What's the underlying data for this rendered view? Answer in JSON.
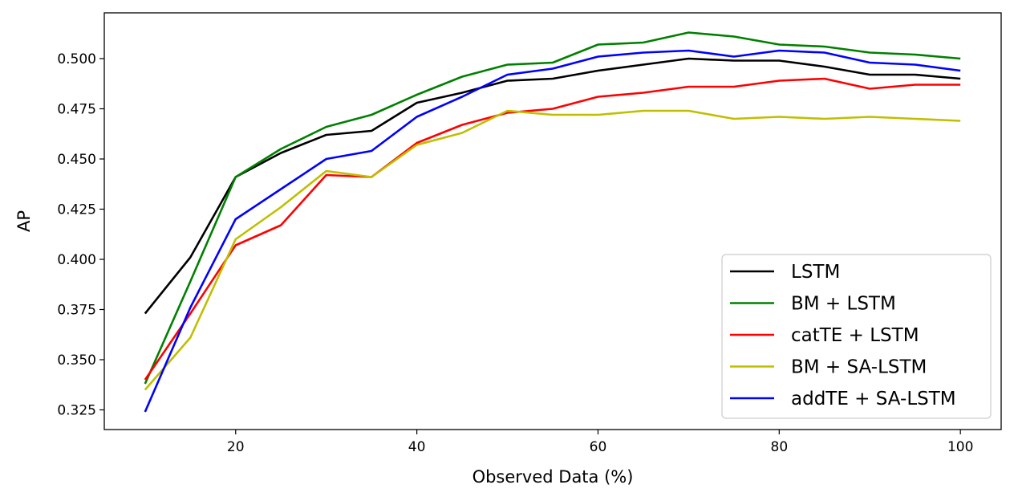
{
  "chart_data": {
    "type": "line",
    "xlabel": "Observed Data (%)",
    "ylabel": "AP",
    "xlim": [
      5.5,
      104.5
    ],
    "ylim": [
      0.3152,
      0.5228
    ],
    "xticks": [
      "20",
      "40",
      "60",
      "80",
      "100"
    ],
    "yticks": [
      "0.325",
      "0.350",
      "0.375",
      "0.400",
      "0.425",
      "0.450",
      "0.475",
      "0.500"
    ],
    "grid": false,
    "legend_position": "lower-right",
    "x": [
      10,
      15,
      20,
      25,
      30,
      35,
      40,
      45,
      50,
      55,
      60,
      65,
      70,
      75,
      80,
      85,
      90,
      95,
      100
    ],
    "series": [
      {
        "name": "LSTM",
        "color": "#000000",
        "values": [
          0.373,
          0.401,
          0.441,
          0.453,
          0.462,
          0.464,
          0.478,
          0.483,
          0.489,
          0.49,
          0.494,
          0.497,
          0.5,
          0.499,
          0.499,
          0.496,
          0.492,
          0.492,
          0.49
        ]
      },
      {
        "name": "BM + LSTM",
        "color": "#008000",
        "values": [
          0.338,
          0.389,
          0.441,
          0.455,
          0.466,
          0.472,
          0.482,
          0.491,
          0.497,
          0.498,
          0.507,
          0.508,
          0.513,
          0.511,
          0.507,
          0.506,
          0.503,
          0.502,
          0.5
        ]
      },
      {
        "name": "catTE + LSTM",
        "color": "#ff0000",
        "values": [
          0.34,
          0.373,
          0.407,
          0.417,
          0.442,
          0.441,
          0.458,
          0.467,
          0.473,
          0.475,
          0.481,
          0.483,
          0.486,
          0.486,
          0.489,
          0.49,
          0.485,
          0.487,
          0.487
        ]
      },
      {
        "name": "BM + SA-LSTM",
        "color": "#bfbf00",
        "values": [
          0.335,
          0.361,
          0.41,
          0.426,
          0.444,
          0.441,
          0.457,
          0.463,
          0.474,
          0.472,
          0.472,
          0.474,
          0.474,
          0.47,
          0.471,
          0.47,
          0.471,
          0.47,
          0.469
        ]
      },
      {
        "name": "addTE + SA-LSTM",
        "color": "#0000ff",
        "values": [
          0.324,
          0.376,
          0.42,
          0.435,
          0.45,
          0.454,
          0.471,
          0.481,
          0.492,
          0.495,
          0.501,
          0.503,
          0.504,
          0.501,
          0.504,
          0.503,
          0.498,
          0.497,
          0.494
        ]
      }
    ]
  }
}
